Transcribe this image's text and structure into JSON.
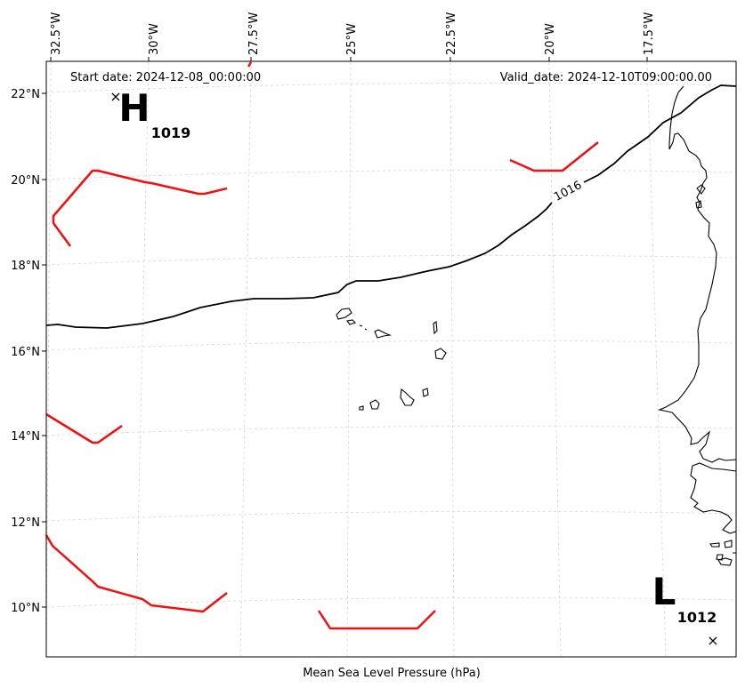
{
  "map": {
    "start_date": "Start date: 2024-12-08_00:00:00",
    "valid_date": "Valid_date: 2024-12-10T09:00:00.00",
    "xlabel": "Mean Sea Level Pressure (hPa)",
    "lon_ticks": [
      "32.5°W",
      "30°W",
      "27.5°W",
      "25°W",
      "22.5°W",
      "20°W",
      "17.5°W"
    ],
    "lat_ticks": [
      "22°N",
      "20°N",
      "18°N",
      "16°N",
      "14°N",
      "12°N",
      "10°N"
    ],
    "isobar_label": "1016",
    "high": {
      "symbol": "H",
      "value": "1019",
      "marker": "×"
    },
    "low": {
      "symbol": "L",
      "value": "1012",
      "marker": "×"
    },
    "colors": {
      "isobar": "#000000",
      "front": "#ee1111",
      "grid": "#d6d6d6",
      "coast": "#000000"
    }
  }
}
